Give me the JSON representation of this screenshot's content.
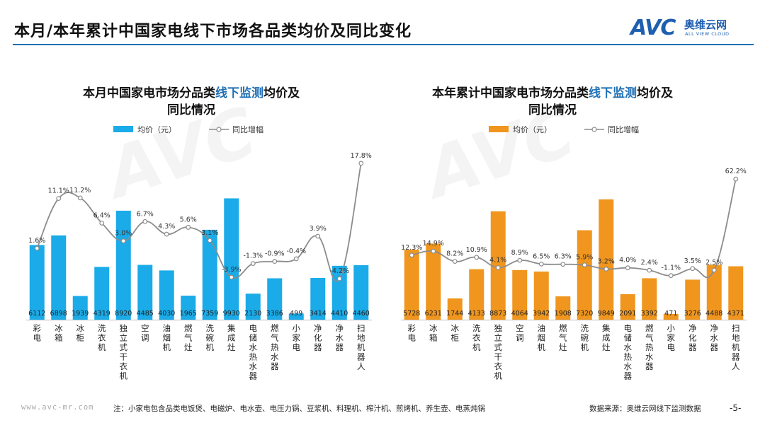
{
  "header": {
    "title": "本月/本年累计中国家电线下市场各品类均价及同比变化",
    "logo_text": "AVC",
    "logo_cn": "奥维云网",
    "logo_en": "ALL VIEW CLOUD",
    "logo_color": "#1f5fb0"
  },
  "chart_data": [
    {
      "type": "bar",
      "title_pre": "本月中国家电市场分品类",
      "title_hl": "线下监测",
      "title_post": "均价及",
      "title_line2": "同比情况",
      "bar_color": "#1aabe8",
      "line_color": "#8c8c8c",
      "legend": [
        "均价（元）",
        "同比增幅"
      ],
      "categories": [
        "彩电",
        "冰箱",
        "冰柜",
        "洗衣机",
        "独立式干衣机",
        "空调",
        "油烟机",
        "燃气灶",
        "洗碗机",
        "集成灶",
        "电储水热水器",
        "燃气热水器",
        "小家电",
        "净化器",
        "净水器",
        "扫地机器人"
      ],
      "series": [
        {
          "name": "均价（元）",
          "values": [
            6112,
            6898,
            1939,
            4319,
            8920,
            4485,
            4030,
            1965,
            7359,
            9930,
            2130,
            3386,
            499,
            3414,
            4410,
            4460
          ]
        },
        {
          "name": "同比增幅",
          "values": [
            1.6,
            11.1,
            11.2,
            6.4,
            3.0,
            6.7,
            4.3,
            5.6,
            3.1,
            -3.9,
            -1.3,
            -0.9,
            -0.4,
            3.9,
            -4.2,
            17.8
          ]
        }
      ],
      "bar_labels": [
        "6112",
        "6898",
        "1939",
        "4319",
        "8920",
        "4485",
        "4030",
        "1965",
        "7359",
        "9930",
        "2130",
        "3386",
        "499",
        "3414",
        "4410",
        "4460"
      ],
      "line_labels": [
        "1.6%",
        "11.1%",
        "11.2%",
        "6.4%",
        "3.0%",
        "6.7%",
        "4.3%",
        "5.6%",
        "3.1%",
        "-3.9%",
        "-1.3%",
        "-0.9%",
        "-0.4%",
        "3.9%",
        "-4.2%",
        "17.8%"
      ],
      "bar_ylim": [
        0,
        11000
      ],
      "line_ylim": [
        -12,
        19
      ]
    },
    {
      "type": "bar",
      "title_pre": "本年累计中国家电市场分品类",
      "title_hl": "线下监测",
      "title_post": "均价及",
      "title_line2": "同比情况",
      "bar_color": "#f0961e",
      "line_color": "#8c8c8c",
      "legend": [
        "均价（元）",
        "同比增幅"
      ],
      "categories": [
        "彩电",
        "冰箱",
        "冰柜",
        "洗衣机",
        "独立式干衣机",
        "空调",
        "油烟机",
        "燃气灶",
        "洗碗机",
        "集成灶",
        "电储水热水器",
        "燃气热水器",
        "小家电",
        "净化器",
        "净水器",
        "扫地机器人"
      ],
      "series": [
        {
          "name": "均价（元）",
          "values": [
            5728,
            6231,
            1744,
            4133,
            8873,
            4064,
            3942,
            1908,
            7320,
            9849,
            2091,
            3392,
            471,
            3276,
            4488,
            4371
          ]
        },
        {
          "name": "同比增幅",
          "values": [
            12.3,
            14.9,
            8.2,
            10.9,
            4.1,
            8.9,
            6.5,
            6.3,
            5.9,
            3.2,
            4.0,
            2.4,
            -1.1,
            3.5,
            2.5,
            62.2
          ]
        }
      ],
      "bar_labels": [
        "5728",
        "6231",
        "1744",
        "4133",
        "8873",
        "4064",
        "3942",
        "1908",
        "7320",
        "9849",
        "2091",
        "3392",
        "471",
        "3276",
        "4488",
        "4371"
      ],
      "line_labels": [
        "12.3%",
        "14.9%",
        "8.2%",
        "10.9%",
        "4.1%",
        "8.9%",
        "6.5%",
        "6.3%",
        "5.9%",
        "3.2%",
        "4.0%",
        "2.4%",
        "-1.1%",
        "3.5%",
        "2.5%",
        "62.2%"
      ],
      "bar_ylim": [
        0,
        11000
      ],
      "line_ylim": [
        -30,
        66
      ]
    }
  ],
  "footer": {
    "url": "www.avc-mr.com",
    "note": "注：小家电包含品类电饭煲、电磁炉、电水壶、电压力锅、豆浆机、料理机、榨汁机、煎烤机、养生壶、电蒸炖锅",
    "source": "数据来源：奥维云网线下监测数据",
    "page": "-5-"
  }
}
